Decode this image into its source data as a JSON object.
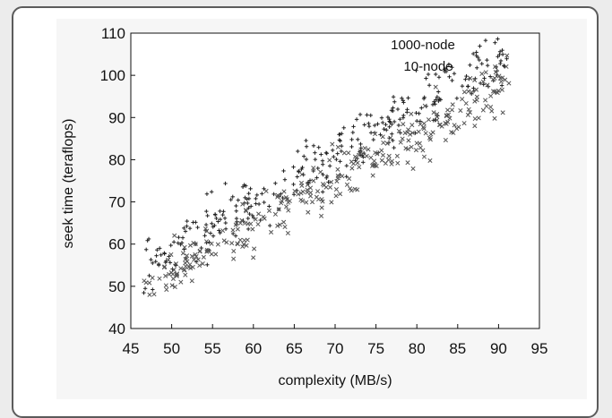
{
  "chart_data": {
    "type": "scatter",
    "title": "",
    "xlabel": "complexity (MB/s)",
    "ylabel": "seek time  (teraflops)",
    "xlim": [
      45,
      95
    ],
    "ylim": [
      40,
      110
    ],
    "xticks": [
      "45",
      "50",
      "55",
      "60",
      "65",
      "70",
      "75",
      "80",
      "85",
      "90",
      "95"
    ],
    "yticks": [
      "40",
      "50",
      "60",
      "70",
      "80",
      "90",
      "100",
      "110"
    ],
    "grid": false,
    "legend_position": "top-right",
    "series": [
      {
        "name": "1000-node",
        "marker": "+",
        "color": "#222222",
        "trend": {
          "x": [
            46.5,
            91.5
          ],
          "y": [
            54,
            106
          ]
        },
        "noise": 4.5,
        "count": 320
      },
      {
        "name": "10-node",
        "marker": "x",
        "color": "#555555",
        "trend": {
          "x": [
            46.5,
            91.5
          ],
          "y": [
            50,
            98
          ]
        },
        "noise": 4.5,
        "count": 320
      }
    ]
  }
}
